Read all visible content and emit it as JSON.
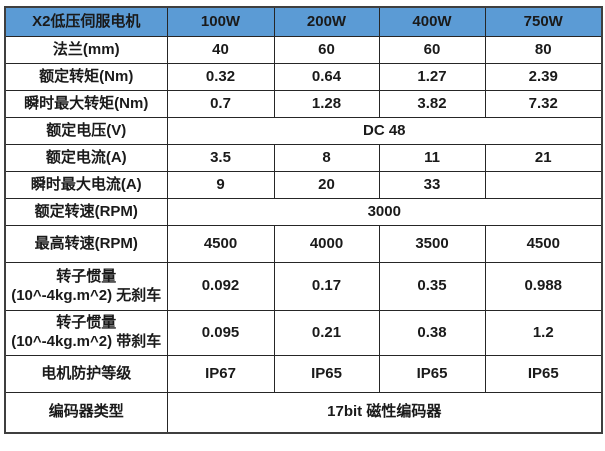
{
  "table": {
    "header": {
      "title": "X2低压伺服电机",
      "columns": [
        "100W",
        "200W",
        "400W",
        "750W"
      ]
    },
    "rows": [
      {
        "label": "法兰(mm)",
        "values": [
          "40",
          "60",
          "60",
          "80"
        ]
      },
      {
        "label": "额定转矩(Nm)",
        "values": [
          "0.32",
          "0.64",
          "1.27",
          "2.39"
        ]
      },
      {
        "label": "瞬时最大转矩(Nm)",
        "values": [
          "0.7",
          "1.28",
          "3.82",
          "7.32"
        ]
      },
      {
        "label": "额定电压(V)",
        "span_value": "DC 48"
      },
      {
        "label": "额定电流(A)",
        "values": [
          "3.5",
          "8",
          "11",
          "21"
        ]
      },
      {
        "label": "瞬时最大电流(A)",
        "values": [
          "9",
          "20",
          "33",
          ""
        ]
      },
      {
        "label": "额定转速(RPM)",
        "span_value": "3000"
      },
      {
        "label": "最高转速(RPM)",
        "values": [
          "4500",
          "4000",
          "3500",
          "4500"
        ]
      },
      {
        "label": "转子惯量(10^-4kg.m^2) 无刹车",
        "values": [
          "0.092",
          "0.17",
          "0.35",
          "0.988"
        ]
      },
      {
        "label": "转子惯量(10^-4kg.m^2) 带刹车",
        "values": [
          "0.095",
          "0.21",
          "0.38",
          "1.2"
        ]
      },
      {
        "label": "电机防护等级",
        "values": [
          "IP67",
          "IP65",
          "IP65",
          "IP65"
        ]
      },
      {
        "label": "编码器类型",
        "span_value": "17bit 磁性编码器"
      }
    ],
    "colors": {
      "header_bg": "#5B9BD5",
      "header_text": "#FFFFFF",
      "body_text": "#1A1A1A",
      "grid_border": "#262626",
      "outer_border": "#3F3F3F"
    }
  }
}
